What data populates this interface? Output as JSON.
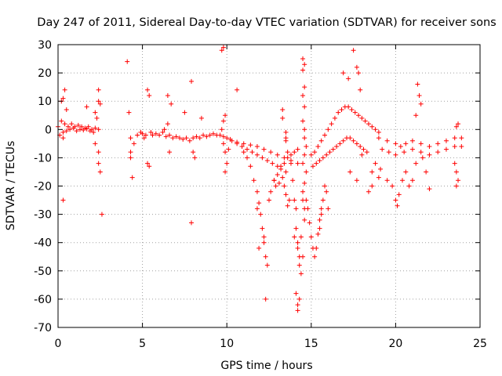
{
  "chart_data": {
    "type": "scatter",
    "title": "Day 247 of 2011, Sidereal Day-to-day VTEC variation (SDTVAR) for receiver sons",
    "xlabel": "GPS time / hours",
    "ylabel": "SDTVAR / TECUs",
    "xlim": [
      0,
      25
    ],
    "ylim": [
      -70,
      30
    ],
    "xticks": [
      0,
      5,
      10,
      15,
      20,
      25
    ],
    "yticks": [
      30,
      20,
      10,
      0,
      -10,
      -20,
      -30,
      -40,
      -50,
      -60,
      -70
    ],
    "grid": true,
    "marker": "+",
    "series_color": "#ff0000",
    "series": [
      {
        "name": "SDTVAR",
        "points": [
          [
            0.0,
            1
          ],
          [
            0.2,
            3
          ],
          [
            0.4,
            2
          ],
          [
            0.6,
            1
          ],
          [
            0.8,
            2
          ],
          [
            1.0,
            1
          ],
          [
            1.2,
            1.5
          ],
          [
            1.4,
            1
          ],
          [
            1.6,
            0.5
          ],
          [
            1.8,
            1
          ],
          [
            2.0,
            0
          ],
          [
            2.2,
            0.5
          ],
          [
            2.4,
            0
          ],
          [
            0.1,
            -2
          ],
          [
            0.3,
            -1
          ],
          [
            0.5,
            -0.5
          ],
          [
            0.7,
            0
          ],
          [
            0.9,
            0.5
          ],
          [
            1.1,
            -0.5
          ],
          [
            1.3,
            0
          ],
          [
            1.5,
            -0.2
          ],
          [
            1.7,
            0.2
          ],
          [
            1.9,
            -0.5
          ],
          [
            2.1,
            -1
          ],
          [
            0.2,
            10
          ],
          [
            0.3,
            11
          ],
          [
            0.4,
            14
          ],
          [
            0.5,
            7
          ],
          [
            0.3,
            -3
          ],
          [
            0.3,
            -25
          ],
          [
            1.7,
            8
          ],
          [
            2.2,
            6
          ],
          [
            2.3,
            4
          ],
          [
            2.4,
            10
          ],
          [
            2.4,
            14
          ],
          [
            2.5,
            9
          ],
          [
            2.2,
            -5
          ],
          [
            2.4,
            -8
          ],
          [
            2.4,
            -12
          ],
          [
            2.5,
            -15
          ],
          [
            2.6,
            -30
          ],
          [
            4.1,
            24
          ],
          [
            4.2,
            6
          ],
          [
            4.3,
            -3
          ],
          [
            4.3,
            -8
          ],
          [
            4.3,
            -10
          ],
          [
            4.4,
            -17
          ],
          [
            4.5,
            -5
          ],
          [
            4.7,
            -2
          ],
          [
            4.9,
            -1
          ],
          [
            5.0,
            -1.5
          ],
          [
            5.1,
            -3
          ],
          [
            5.2,
            -2
          ],
          [
            5.3,
            -12
          ],
          [
            5.4,
            -13
          ],
          [
            5.3,
            14
          ],
          [
            5.4,
            12
          ],
          [
            5.5,
            -1
          ],
          [
            5.6,
            -2
          ],
          [
            5.8,
            -1.5
          ],
          [
            6.0,
            -2
          ],
          [
            6.2,
            -1
          ],
          [
            6.4,
            -2.5
          ],
          [
            6.6,
            -2
          ],
          [
            6.8,
            -3
          ],
          [
            7.0,
            -2.5
          ],
          [
            7.2,
            -3
          ],
          [
            7.4,
            -3.5
          ],
          [
            7.6,
            -3
          ],
          [
            7.8,
            -4
          ],
          [
            6.3,
            0
          ],
          [
            6.5,
            2
          ],
          [
            6.5,
            12
          ],
          [
            6.7,
            9
          ],
          [
            6.6,
            -8
          ],
          [
            7.5,
            6
          ],
          [
            7.9,
            17
          ],
          [
            8.0,
            -8
          ],
          [
            8.1,
            -10
          ],
          [
            7.9,
            -33
          ],
          [
            8.5,
            4
          ],
          [
            8.0,
            -3
          ],
          [
            8.2,
            -2.5
          ],
          [
            8.4,
            -3
          ],
          [
            8.6,
            -2
          ],
          [
            8.8,
            -2.5
          ],
          [
            9.0,
            -2
          ],
          [
            9.2,
            -1.5
          ],
          [
            9.4,
            -2
          ],
          [
            9.6,
            -2
          ],
          [
            9.8,
            -2.5
          ],
          [
            9.7,
            28
          ],
          [
            9.8,
            29
          ],
          [
            9.9,
            5
          ],
          [
            9.8,
            3
          ],
          [
            9.7,
            0
          ],
          [
            9.8,
            -5
          ],
          [
            9.9,
            -8
          ],
          [
            10.0,
            -12
          ],
          [
            9.9,
            -15
          ],
          [
            10.1,
            -7
          ],
          [
            10.6,
            14
          ],
          [
            10.0,
            -3
          ],
          [
            10.3,
            -4
          ],
          [
            10.6,
            -5
          ],
          [
            10.9,
            -6
          ],
          [
            11.2,
            -7
          ],
          [
            11.5,
            -8
          ],
          [
            11.8,
            -9
          ],
          [
            12.1,
            -10
          ],
          [
            12.4,
            -11
          ],
          [
            12.7,
            -12
          ],
          [
            13.0,
            -13
          ],
          [
            10.2,
            -3.5
          ],
          [
            10.6,
            -4.5
          ],
          [
            11.0,
            -5
          ],
          [
            11.4,
            -5.5
          ],
          [
            11.8,
            -6
          ],
          [
            12.2,
            -7
          ],
          [
            12.6,
            -8
          ],
          [
            13.0,
            -9
          ],
          [
            13.4,
            -10
          ],
          [
            13.8,
            -11
          ],
          [
            14.2,
            -12
          ],
          [
            11.0,
            -8
          ],
          [
            11.2,
            -10
          ],
          [
            11.4,
            -13
          ],
          [
            11.6,
            -18
          ],
          [
            11.8,
            -22
          ],
          [
            11.9,
            -26
          ],
          [
            12.0,
            -30
          ],
          [
            12.1,
            -35
          ],
          [
            12.2,
            -40
          ],
          [
            12.3,
            -45
          ],
          [
            12.4,
            -48
          ],
          [
            12.2,
            -38
          ],
          [
            11.9,
            -42
          ],
          [
            11.8,
            -28
          ],
          [
            12.3,
            -60
          ],
          [
            12.6,
            -22
          ],
          [
            12.8,
            -18
          ],
          [
            12.5,
            -25
          ],
          [
            12.8,
            -18
          ],
          [
            13.0,
            -16
          ],
          [
            13.2,
            -14
          ],
          [
            13.4,
            -12
          ],
          [
            13.6,
            -10
          ],
          [
            13.8,
            -9
          ],
          [
            14.0,
            -8
          ],
          [
            14.2,
            -7
          ],
          [
            12.9,
            -20
          ],
          [
            13.1,
            -19
          ],
          [
            13.3,
            -17
          ],
          [
            13.5,
            -15
          ],
          [
            13.2,
            -13
          ],
          [
            13.3,
            7
          ],
          [
            13.5,
            -4
          ],
          [
            13.6,
            -8
          ],
          [
            13.4,
            -20
          ],
          [
            13.5,
            -23
          ],
          [
            13.6,
            -27
          ],
          [
            13.7,
            -25
          ],
          [
            13.5,
            -1
          ],
          [
            13.5,
            -3
          ],
          [
            13.3,
            4
          ],
          [
            13.8,
            -12
          ],
          [
            13.9,
            -18
          ],
          [
            14.0,
            -25
          ],
          [
            14.1,
            -35
          ],
          [
            14.2,
            -42
          ],
          [
            14.3,
            -48
          ],
          [
            14.4,
            -51
          ],
          [
            14.3,
            -45
          ],
          [
            14.2,
            -40
          ],
          [
            14.1,
            -58
          ],
          [
            14.2,
            -62
          ],
          [
            14.3,
            -60
          ],
          [
            14.2,
            -64
          ],
          [
            14.0,
            -38
          ],
          [
            14.1,
            -28
          ],
          [
            14.5,
            -45
          ],
          [
            14.4,
            -38
          ],
          [
            14.6,
            -32
          ],
          [
            14.5,
            -25
          ],
          [
            14.5,
            25
          ],
          [
            14.6,
            23
          ],
          [
            14.5,
            21
          ],
          [
            14.6,
            15
          ],
          [
            14.5,
            12
          ],
          [
            14.6,
            8
          ],
          [
            14.5,
            3
          ],
          [
            14.6,
            0
          ],
          [
            14.6,
            -3
          ],
          [
            14.7,
            -6
          ],
          [
            14.6,
            -9
          ],
          [
            14.5,
            -12
          ],
          [
            14.7,
            -15
          ],
          [
            14.6,
            -19
          ],
          [
            14.5,
            -22
          ],
          [
            14.7,
            -25
          ],
          [
            14.6,
            -28
          ],
          [
            14.8,
            -28
          ],
          [
            14.9,
            -33
          ],
          [
            15.0,
            -38
          ],
          [
            15.1,
            -42
          ],
          [
            15.2,
            -45
          ],
          [
            15.3,
            -42
          ],
          [
            15.4,
            -37
          ],
          [
            15.5,
            -32
          ],
          [
            15.6,
            -28
          ],
          [
            15.7,
            -25
          ],
          [
            15.9,
            -22
          ],
          [
            16.0,
            -28
          ],
          [
            15.8,
            -20
          ],
          [
            15.6,
            -30
          ],
          [
            15.5,
            -35
          ],
          [
            15.0,
            -9
          ],
          [
            15.2,
            -8
          ],
          [
            15.4,
            -6
          ],
          [
            15.6,
            -4
          ],
          [
            15.8,
            -2
          ],
          [
            16.0,
            0
          ],
          [
            16.2,
            2
          ],
          [
            16.4,
            4
          ],
          [
            16.6,
            6
          ],
          [
            16.8,
            7
          ],
          [
            17.0,
            8
          ],
          [
            17.2,
            8
          ],
          [
            17.4,
            7
          ],
          [
            17.6,
            6
          ],
          [
            17.8,
            5
          ],
          [
            18.0,
            4
          ],
          [
            18.2,
            3
          ],
          [
            18.4,
            2
          ],
          [
            18.6,
            1
          ],
          [
            18.8,
            0
          ],
          [
            19.0,
            -1
          ],
          [
            15.1,
            -13
          ],
          [
            15.3,
            -12
          ],
          [
            15.5,
            -11
          ],
          [
            15.7,
            -10
          ],
          [
            15.9,
            -9
          ],
          [
            16.1,
            -8
          ],
          [
            16.3,
            -7
          ],
          [
            16.5,
            -6
          ],
          [
            16.7,
            -5
          ],
          [
            16.9,
            -4
          ],
          [
            17.1,
            -3
          ],
          [
            17.3,
            -3
          ],
          [
            17.5,
            -4
          ],
          [
            17.7,
            -5
          ],
          [
            17.9,
            -6
          ],
          [
            18.1,
            -7
          ],
          [
            18.3,
            -8
          ],
          [
            16.9,
            20
          ],
          [
            17.2,
            18
          ],
          [
            17.5,
            28
          ],
          [
            17.7,
            22
          ],
          [
            17.8,
            20
          ],
          [
            17.9,
            14
          ],
          [
            18.0,
            -9
          ],
          [
            17.3,
            -15
          ],
          [
            17.7,
            -18
          ],
          [
            18.4,
            -22
          ],
          [
            18.6,
            -20
          ],
          [
            18.6,
            -15
          ],
          [
            18.8,
            -12
          ],
          [
            19.0,
            -17
          ],
          [
            19.1,
            -14
          ],
          [
            19.5,
            -18
          ],
          [
            19.8,
            -20
          ],
          [
            20.0,
            -25
          ],
          [
            20.1,
            -27
          ],
          [
            20.2,
            -23
          ],
          [
            20.4,
            -18
          ],
          [
            20.6,
            -15
          ],
          [
            20.8,
            -20
          ],
          [
            21.0,
            -18
          ],
          [
            21.2,
            -12
          ],
          [
            19.0,
            -3
          ],
          [
            19.5,
            -4
          ],
          [
            20.0,
            -5
          ],
          [
            20.3,
            -6
          ],
          [
            20.6,
            -5
          ],
          [
            21.0,
            -4
          ],
          [
            21.5,
            -5
          ],
          [
            22.0,
            -6
          ],
          [
            22.5,
            -5
          ],
          [
            23.0,
            -4
          ],
          [
            23.5,
            -3
          ],
          [
            23.9,
            -3
          ],
          [
            19.2,
            -7
          ],
          [
            19.6,
            -8
          ],
          [
            20.0,
            -9
          ],
          [
            20.5,
            -8
          ],
          [
            21.0,
            -7
          ],
          [
            21.5,
            -8
          ],
          [
            22.0,
            -9
          ],
          [
            22.5,
            -8
          ],
          [
            23.0,
            -7
          ],
          [
            23.5,
            -6
          ],
          [
            23.9,
            -6
          ],
          [
            21.3,
            16
          ],
          [
            21.4,
            12
          ],
          [
            21.5,
            9
          ],
          [
            21.2,
            5
          ],
          [
            21.6,
            -10
          ],
          [
            21.8,
            -15
          ],
          [
            22.0,
            -21
          ],
          [
            23.5,
            -12
          ],
          [
            23.6,
            -15
          ],
          [
            23.7,
            -18
          ],
          [
            23.6,
            -20
          ],
          [
            23.7,
            2
          ],
          [
            23.6,
            1
          ]
        ]
      }
    ]
  }
}
